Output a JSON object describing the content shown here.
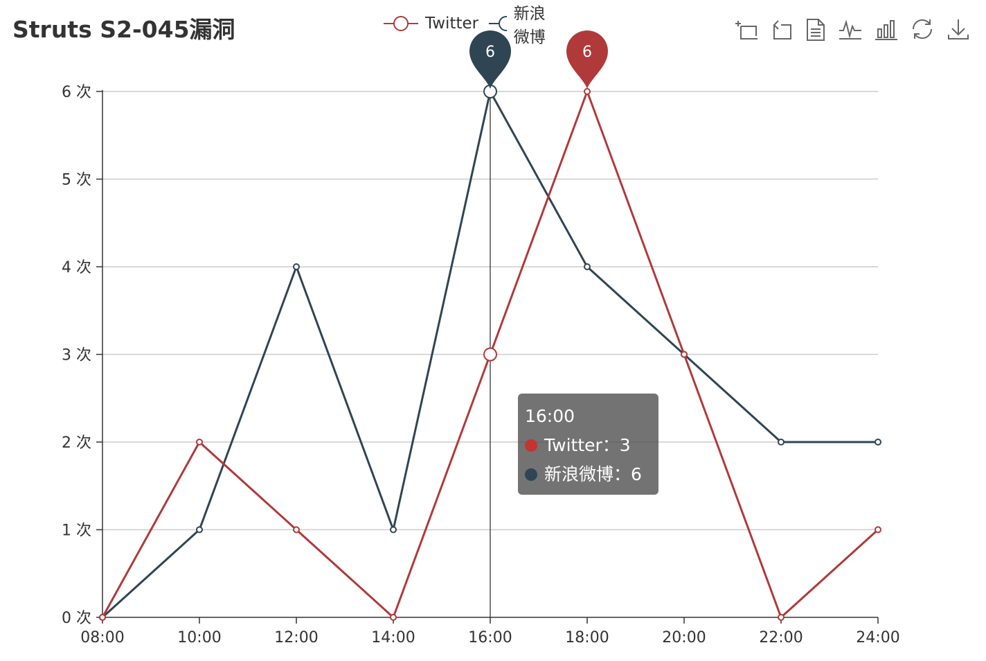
{
  "title": "Struts S2-045漏洞",
  "legend": [
    {
      "name": "Twitter",
      "color": "#b03a3a"
    },
    {
      "name": "新浪微博",
      "color": "#2f4554"
    }
  ],
  "toolbox": [
    {
      "icon": "data-zoom-icon"
    },
    {
      "icon": "zoom-reset-icon"
    },
    {
      "icon": "data-view-icon"
    },
    {
      "icon": "line-chart-icon"
    },
    {
      "icon": "bar-chart-icon"
    },
    {
      "icon": "restore-icon"
    },
    {
      "icon": "save-image-icon"
    }
  ],
  "tooltip": {
    "header": "16:00",
    "rows": [
      {
        "label": "Twitter：3",
        "color": "#c23531"
      },
      {
        "label": "新浪微博：6",
        "color": "#2f4554"
      }
    ]
  },
  "chart_data": {
    "type": "line",
    "title": "Struts S2-045漏洞",
    "categories": [
      "08:00",
      "10:00",
      "12:00",
      "14:00",
      "16:00",
      "18:00",
      "20:00",
      "22:00",
      "24:00"
    ],
    "series": [
      {
        "name": "Twitter",
        "color": "#b03a3a",
        "values": [
          0,
          2,
          1,
          0,
          3,
          6,
          3,
          0,
          1
        ],
        "max_pin": {
          "category": "18:00",
          "value": 6
        }
      },
      {
        "name": "新浪微博",
        "color": "#2f4554",
        "values": [
          0,
          1,
          4,
          1,
          6,
          4,
          3,
          2,
          2
        ],
        "max_pin": {
          "category": "16:00",
          "value": 6
        }
      }
    ],
    "y_ticks": [
      "0 次",
      "1 次",
      "2 次",
      "3 次",
      "4 次",
      "5 次",
      "6 次"
    ],
    "ylim": [
      0,
      6
    ],
    "grid": true,
    "legend_position": "top-center",
    "highlighted_category": "16:00"
  }
}
